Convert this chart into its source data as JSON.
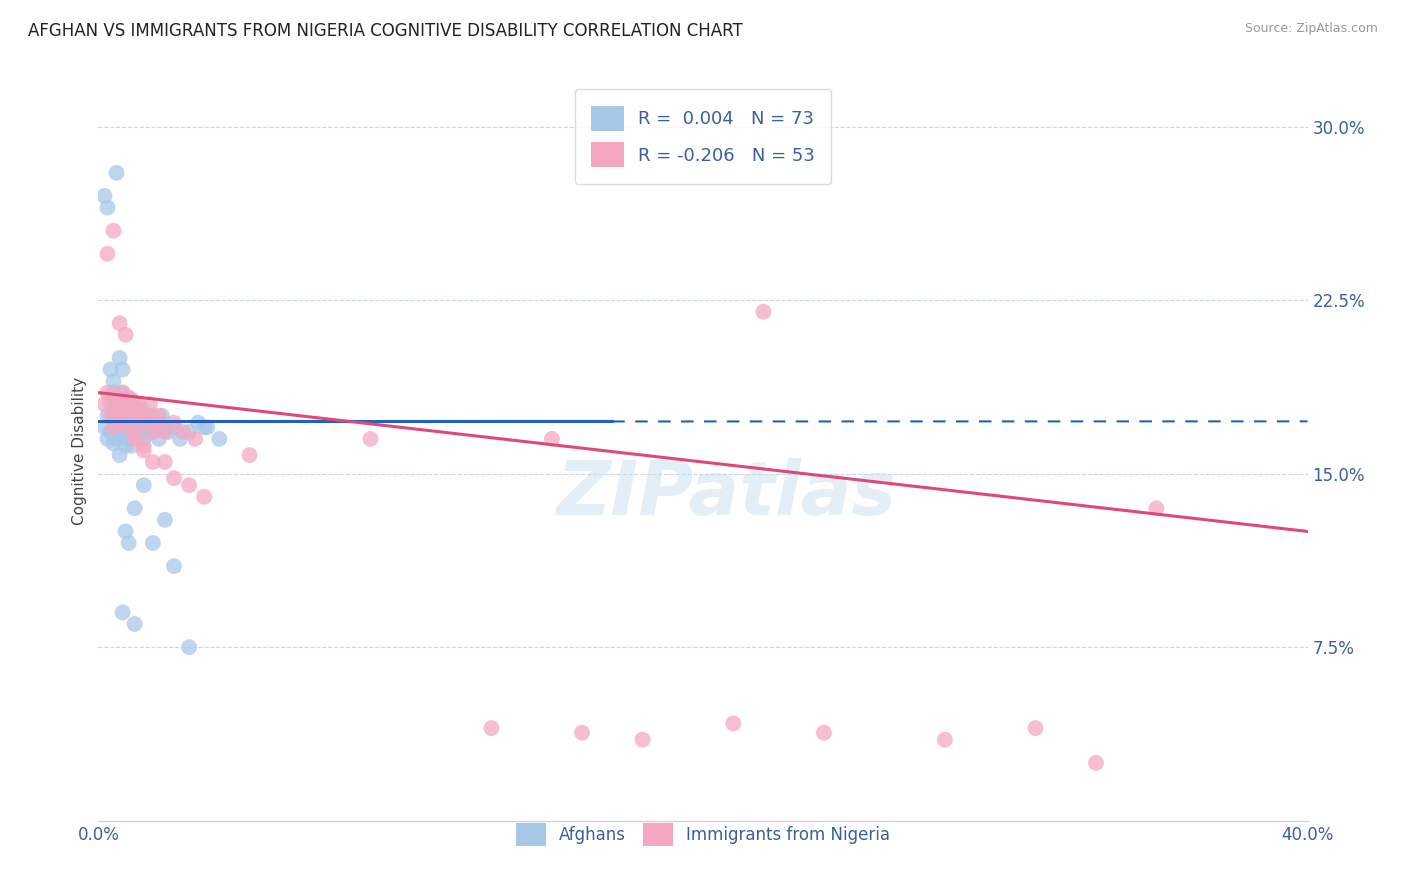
{
  "title": "AFGHAN VS IMMIGRANTS FROM NIGERIA COGNITIVE DISABILITY CORRELATION CHART",
  "source": "Source: ZipAtlas.com",
  "ylabel": "Cognitive Disability",
  "ytick_labels": [
    "30.0%",
    "22.5%",
    "15.0%",
    "7.5%"
  ],
  "ytick_values": [
    0.3,
    0.225,
    0.15,
    0.075
  ],
  "xmin": 0.0,
  "xmax": 0.4,
  "ymin": 0.0,
  "ymax": 0.32,
  "blue_color": "#a8c8e8",
  "pink_color": "#f4a8c0",
  "blue_line_color": "#2060c0",
  "pink_line_color": "#e04878",
  "grid_color": "#c8d4e8",
  "text_color": "#3a5fa0",
  "axis_color": "#c8d4e8",
  "r_blue": 0.004,
  "n_blue": 73,
  "r_pink": -0.206,
  "n_pink": 53,
  "watermark": "ZIPatlas",
  "blue_scatter_x": [
    0.002,
    0.003,
    0.003,
    0.004,
    0.004,
    0.005,
    0.005,
    0.005,
    0.006,
    0.006,
    0.006,
    0.007,
    0.007,
    0.007,
    0.007,
    0.008,
    0.008,
    0.008,
    0.008,
    0.009,
    0.009,
    0.009,
    0.009,
    0.01,
    0.01,
    0.01,
    0.011,
    0.011,
    0.011,
    0.012,
    0.012,
    0.012,
    0.013,
    0.013,
    0.014,
    0.014,
    0.015,
    0.015,
    0.016,
    0.016,
    0.017,
    0.018,
    0.018,
    0.019,
    0.02,
    0.02,
    0.021,
    0.022,
    0.023,
    0.025,
    0.027,
    0.03,
    0.033,
    0.036,
    0.04,
    0.002,
    0.003,
    0.004,
    0.005,
    0.006,
    0.007,
    0.008,
    0.009,
    0.01,
    0.012,
    0.015,
    0.018,
    0.022,
    0.025,
    0.03,
    0.012,
    0.008,
    0.035
  ],
  "blue_scatter_y": [
    0.17,
    0.175,
    0.165,
    0.18,
    0.168,
    0.175,
    0.163,
    0.185,
    0.172,
    0.18,
    0.165,
    0.175,
    0.168,
    0.182,
    0.158,
    0.176,
    0.165,
    0.185,
    0.17,
    0.175,
    0.162,
    0.18,
    0.168,
    0.175,
    0.165,
    0.183,
    0.172,
    0.178,
    0.162,
    0.175,
    0.168,
    0.18,
    0.17,
    0.175,
    0.168,
    0.178,
    0.172,
    0.165,
    0.175,
    0.168,
    0.172,
    0.175,
    0.168,
    0.17,
    0.172,
    0.165,
    0.175,
    0.17,
    0.168,
    0.17,
    0.165,
    0.168,
    0.172,
    0.17,
    0.165,
    0.27,
    0.265,
    0.195,
    0.19,
    0.28,
    0.2,
    0.195,
    0.125,
    0.12,
    0.135,
    0.145,
    0.12,
    0.13,
    0.11,
    0.075,
    0.085,
    0.09,
    0.17
  ],
  "pink_scatter_x": [
    0.002,
    0.003,
    0.004,
    0.005,
    0.005,
    0.006,
    0.007,
    0.007,
    0.008,
    0.008,
    0.009,
    0.01,
    0.01,
    0.011,
    0.012,
    0.012,
    0.013,
    0.014,
    0.015,
    0.015,
    0.016,
    0.017,
    0.018,
    0.019,
    0.02,
    0.022,
    0.025,
    0.028,
    0.032,
    0.003,
    0.005,
    0.007,
    0.009,
    0.012,
    0.015,
    0.018,
    0.022,
    0.025,
    0.03,
    0.035,
    0.05,
    0.09,
    0.13,
    0.16,
    0.18,
    0.21,
    0.24,
    0.28,
    0.31,
    0.33,
    0.22,
    0.15,
    0.35
  ],
  "pink_scatter_y": [
    0.18,
    0.185,
    0.175,
    0.182,
    0.17,
    0.178,
    0.18,
    0.172,
    0.185,
    0.175,
    0.18,
    0.178,
    0.17,
    0.182,
    0.175,
    0.168,
    0.18,
    0.175,
    0.172,
    0.162,
    0.175,
    0.18,
    0.168,
    0.172,
    0.175,
    0.168,
    0.172,
    0.168,
    0.165,
    0.245,
    0.255,
    0.215,
    0.21,
    0.165,
    0.16,
    0.155,
    0.155,
    0.148,
    0.145,
    0.14,
    0.158,
    0.165,
    0.04,
    0.038,
    0.035,
    0.042,
    0.038,
    0.035,
    0.04,
    0.025,
    0.22,
    0.165,
    0.135
  ],
  "blue_line_x_solid_end": 0.17,
  "blue_line_x": [
    0.0,
    0.4
  ],
  "blue_line_y_intercept": 0.1725,
  "blue_line_slope": 0.0002,
  "pink_line_x": [
    0.0,
    0.4
  ],
  "pink_line_y_start": 0.185,
  "pink_line_y_end": 0.125
}
